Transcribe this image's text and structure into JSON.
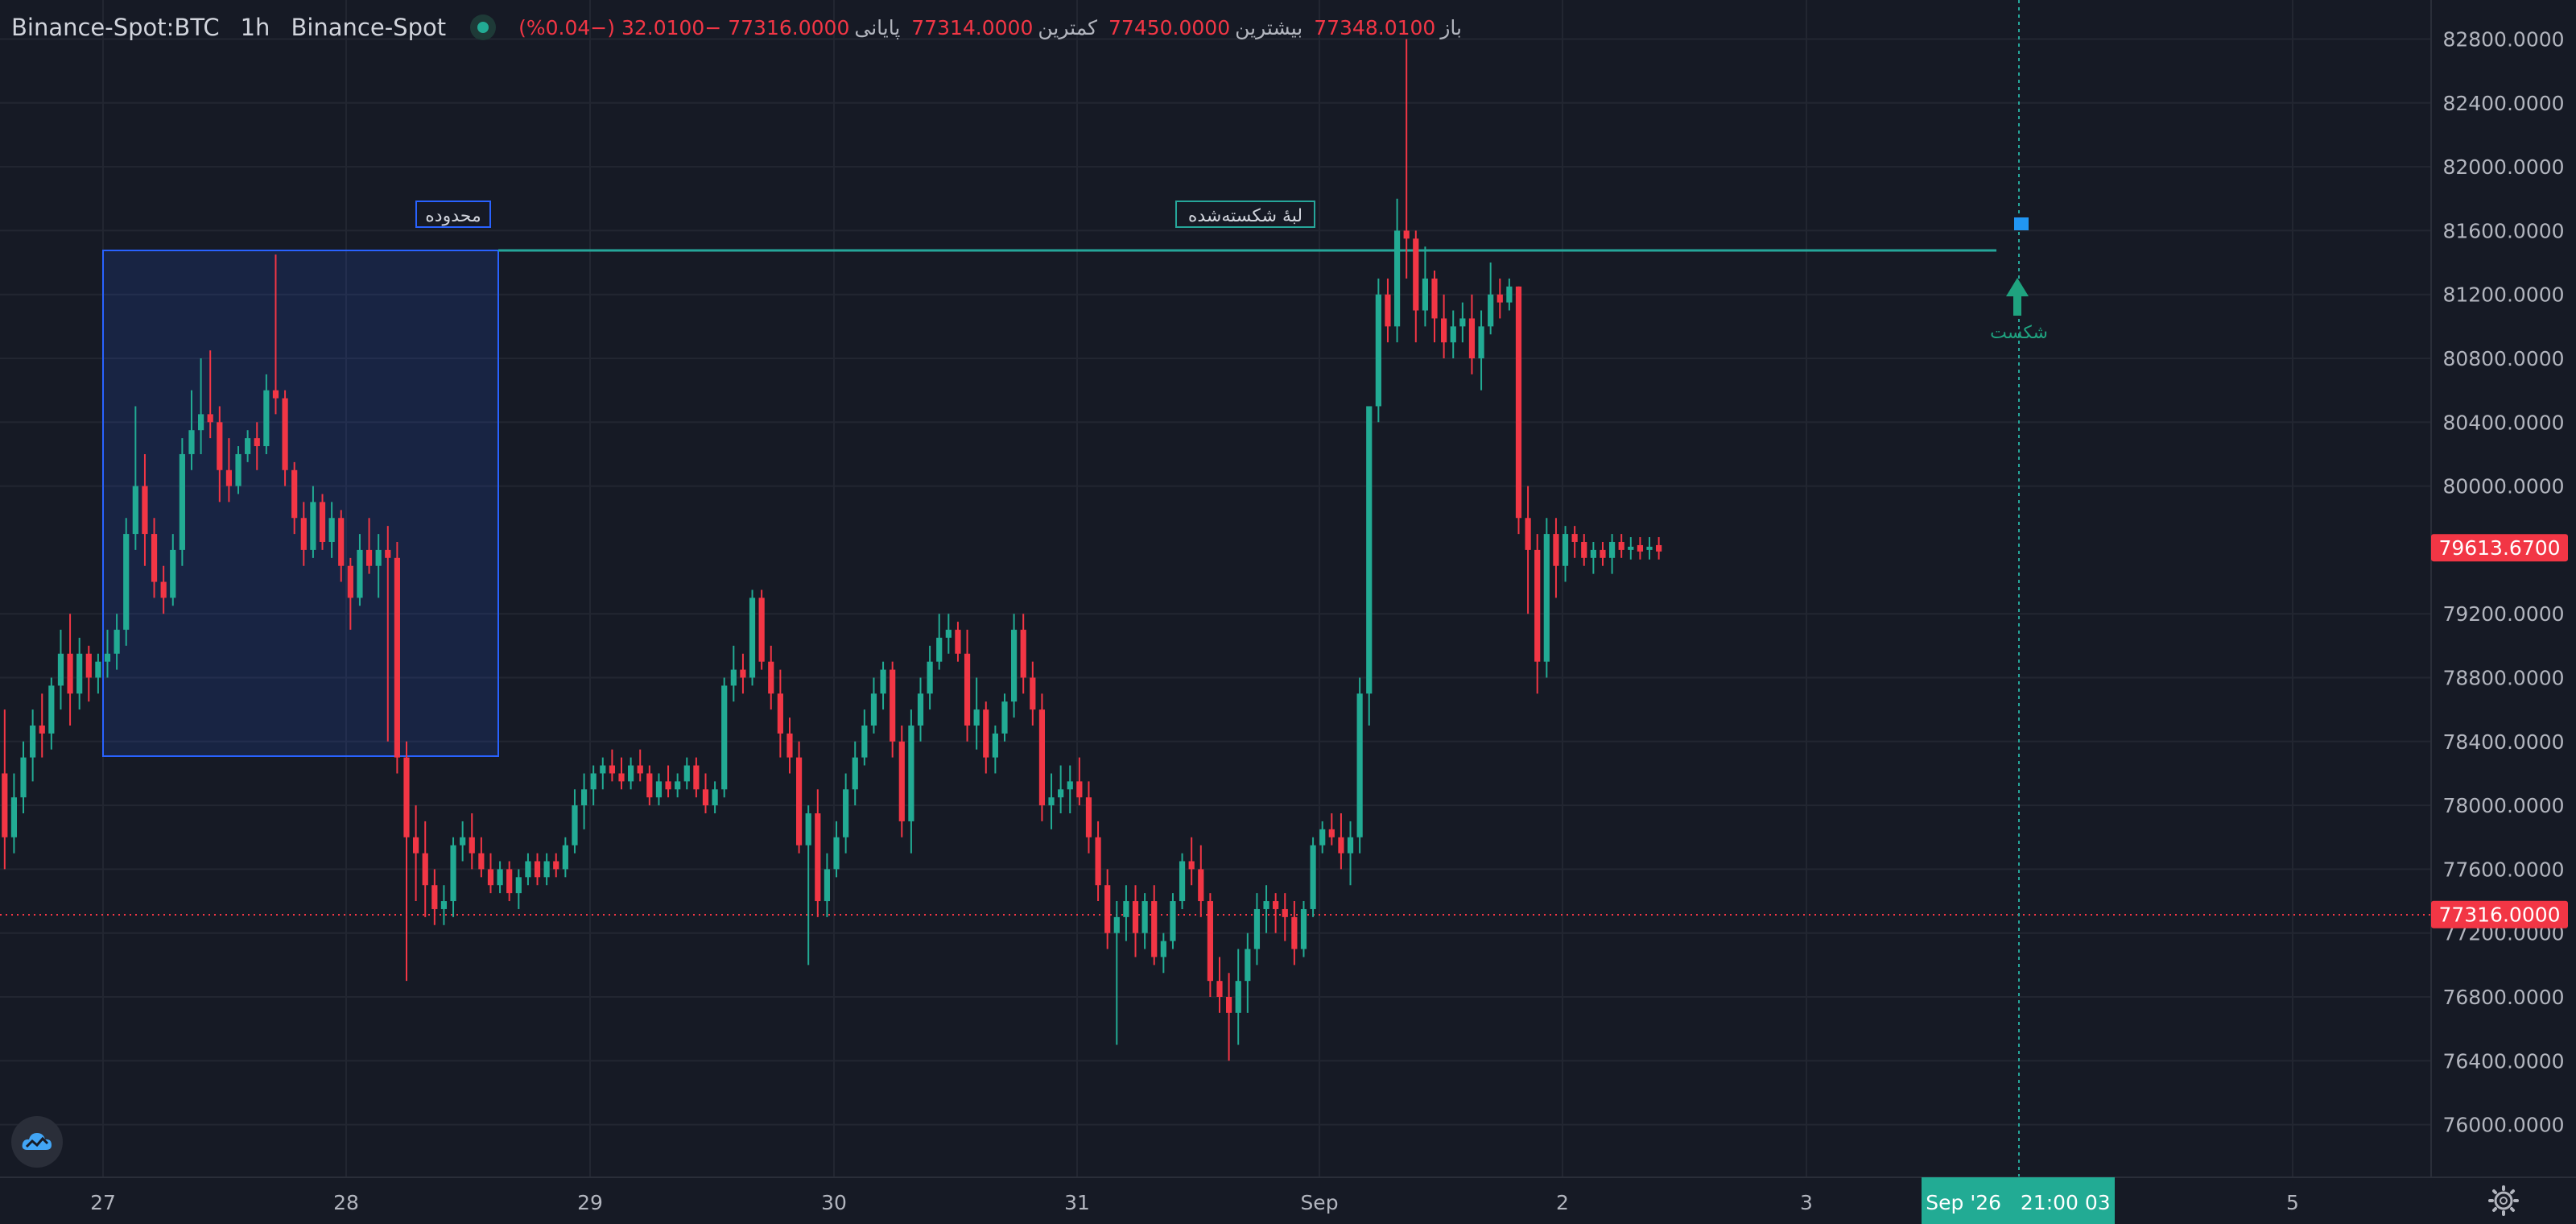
{
  "header": {
    "symbol": "Binance-Spot:BTC",
    "interval": "1h",
    "exchange": "Binance-Spot",
    "open_label": "باز",
    "open": "77348.0100",
    "high_label": "بیشترین",
    "high": "77450.0000",
    "low_label": "کمترین",
    "low": "77314.0000",
    "close_label": "پایانی",
    "close": "77316.0000",
    "change": "−32.0100 (−0.04%)"
  },
  "price_axis": {
    "ticks": [
      "82800.0000",
      "82400.0000",
      "82000.0000",
      "81600.0000",
      "81200.0000",
      "80800.0000",
      "80400.0000",
      "80000.0000",
      "79200.0000",
      "78800.0000",
      "78400.0000",
      "78000.0000",
      "77600.0000",
      "77200.0000",
      "76800.0000",
      "76400.0000",
      "76000.0000"
    ],
    "badges": [
      {
        "label": "79613.6700",
        "value": 79613.67,
        "color": "#f23645"
      },
      {
        "label": "77316.0000",
        "value": 77316,
        "color": "#f23645"
      }
    ]
  },
  "time_axis": {
    "ticks": [
      "27",
      "28",
      "29",
      "30",
      "31",
      "Sep",
      "2",
      "3",
      "5"
    ],
    "crosshair_label": "Sep '26   21:00 03"
  },
  "annotations": {
    "range_label": "محدوده",
    "broken_edge_label": "لبهٔ شکسته‌شده",
    "breakout_label": "شکست"
  },
  "colors": {
    "background": "#161a25",
    "up": "#22ab94",
    "down": "#f23645",
    "range_box": "#2962ff",
    "level_line": "#26a69a",
    "crosshair": "#26a69a"
  },
  "icons": {
    "logo": "tradingview-cloud-icon",
    "settings": "gear-icon"
  },
  "chart_data": {
    "type": "candlestick",
    "title": "",
    "series": [
      {
        "name": "",
        "values": [
          [
            78200,
            78600,
            77600,
            77800
          ],
          [
            77800,
            78200,
            77700,
            78050
          ],
          [
            78050,
            78400,
            77950,
            78300
          ],
          [
            78300,
            78600,
            78150,
            78500
          ],
          [
            78500,
            78700,
            78300,
            78450
          ],
          [
            78450,
            78800,
            78350,
            78750
          ],
          [
            78750,
            79100,
            78600,
            78950
          ],
          [
            78950,
            79200,
            78500,
            78700
          ],
          [
            78700,
            79050,
            78600,
            78950
          ],
          [
            78950,
            79000,
            78650,
            78800
          ],
          [
            78800,
            78950,
            78700,
            78900
          ],
          [
            78900,
            79100,
            78800,
            78950
          ],
          [
            78950,
            79200,
            78850,
            79100
          ],
          [
            79100,
            79800,
            79000,
            79700
          ],
          [
            79700,
            80500,
            79600,
            80000
          ],
          [
            80000,
            80200,
            79500,
            79700
          ],
          [
            79700,
            79800,
            79300,
            79400
          ],
          [
            79400,
            79500,
            79200,
            79300
          ],
          [
            79300,
            79700,
            79250,
            79600
          ],
          [
            79600,
            80300,
            79500,
            80200
          ],
          [
            80200,
            80600,
            80100,
            80350
          ],
          [
            80350,
            80800,
            80200,
            80450
          ],
          [
            80450,
            80850,
            80300,
            80400
          ],
          [
            80400,
            80500,
            79900,
            80100
          ],
          [
            80100,
            80300,
            79900,
            80000
          ],
          [
            80000,
            80250,
            79950,
            80200
          ],
          [
            80200,
            80350,
            80150,
            80300
          ],
          [
            80300,
            80400,
            80100,
            80250
          ],
          [
            80250,
            80700,
            80200,
            80600
          ],
          [
            80600,
            81450,
            80450,
            80550
          ],
          [
            80550,
            80600,
            80000,
            80100
          ],
          [
            80100,
            80150,
            79700,
            79800
          ],
          [
            79800,
            79900,
            79500,
            79600
          ],
          [
            79600,
            80000,
            79550,
            79900
          ],
          [
            79900,
            79950,
            79600,
            79650
          ],
          [
            79650,
            79900,
            79550,
            79800
          ],
          [
            79800,
            79850,
            79400,
            79500
          ],
          [
            79500,
            79550,
            79100,
            79300
          ],
          [
            79300,
            79700,
            79250,
            79600
          ],
          [
            79600,
            79800,
            79450,
            79500
          ],
          [
            79500,
            79700,
            79300,
            79600
          ],
          [
            79600,
            79750,
            78400,
            79550
          ],
          [
            79550,
            79650,
            78200,
            78300
          ],
          [
            78300,
            78400,
            76900,
            77800
          ],
          [
            77800,
            78000,
            77400,
            77700
          ],
          [
            77700,
            77900,
            77300,
            77500
          ],
          [
            77500,
            77600,
            77250,
            77350
          ],
          [
            77350,
            77500,
            77250,
            77400
          ],
          [
            77400,
            77800,
            77300,
            77750
          ],
          [
            77750,
            77900,
            77650,
            77800
          ],
          [
            77800,
            77950,
            77600,
            77700
          ],
          [
            77700,
            77800,
            77550,
            77600
          ],
          [
            77600,
            77700,
            77450,
            77500
          ],
          [
            77500,
            77650,
            77450,
            77600
          ],
          [
            77600,
            77650,
            77400,
            77450
          ],
          [
            77450,
            77600,
            77350,
            77550
          ],
          [
            77550,
            77700,
            77500,
            77650
          ],
          [
            77650,
            77700,
            77500,
            77550
          ],
          [
            77550,
            77700,
            77500,
            77650
          ],
          [
            77650,
            77700,
            77550,
            77600
          ],
          [
            77600,
            77800,
            77550,
            77750
          ],
          [
            77750,
            78100,
            77700,
            78000
          ],
          [
            78000,
            78200,
            77850,
            78100
          ],
          [
            78100,
            78250,
            78000,
            78200
          ],
          [
            78200,
            78300,
            78100,
            78250
          ],
          [
            78250,
            78350,
            78150,
            78200
          ],
          [
            78200,
            78300,
            78100,
            78150
          ],
          [
            78150,
            78300,
            78100,
            78250
          ],
          [
            78250,
            78350,
            78150,
            78200
          ],
          [
            78200,
            78250,
            78000,
            78050
          ],
          [
            78050,
            78200,
            78000,
            78150
          ],
          [
            78150,
            78250,
            78050,
            78100
          ],
          [
            78100,
            78200,
            78050,
            78150
          ],
          [
            78150,
            78300,
            78100,
            78250
          ],
          [
            78250,
            78300,
            78050,
            78100
          ],
          [
            78100,
            78200,
            77950,
            78000
          ],
          [
            78000,
            78150,
            77950,
            78100
          ],
          [
            78100,
            78800,
            78050,
            78750
          ],
          [
            78750,
            79000,
            78650,
            78850
          ],
          [
            78850,
            78950,
            78700,
            78800
          ],
          [
            78800,
            79350,
            78750,
            79300
          ],
          [
            79300,
            79350,
            78850,
            78900
          ],
          [
            78900,
            79000,
            78600,
            78700
          ],
          [
            78700,
            78850,
            78300,
            78450
          ],
          [
            78450,
            78550,
            78200,
            78300
          ],
          [
            78300,
            78400,
            77700,
            77750
          ],
          [
            77750,
            78000,
            77000,
            77950
          ],
          [
            77950,
            78100,
            77300,
            77400
          ],
          [
            77400,
            77700,
            77300,
            77600
          ],
          [
            77600,
            77900,
            77550,
            77800
          ],
          [
            77800,
            78200,
            77700,
            78100
          ],
          [
            78100,
            78400,
            78000,
            78300
          ],
          [
            78300,
            78600,
            78250,
            78500
          ],
          [
            78500,
            78800,
            78450,
            78700
          ],
          [
            78700,
            78900,
            78600,
            78850
          ],
          [
            78850,
            78900,
            78300,
            78400
          ],
          [
            78400,
            78500,
            77800,
            77900
          ],
          [
            77900,
            78600,
            77700,
            78500
          ],
          [
            78500,
            78800,
            78400,
            78700
          ],
          [
            78700,
            79000,
            78600,
            78900
          ],
          [
            78900,
            79200,
            78850,
            79050
          ],
          [
            79050,
            79200,
            78950,
            79100
          ],
          [
            79100,
            79150,
            78900,
            78950
          ],
          [
            78950,
            79100,
            78400,
            78500
          ],
          [
            78500,
            78800,
            78350,
            78600
          ],
          [
            78600,
            78650,
            78200,
            78300
          ],
          [
            78300,
            78500,
            78200,
            78450
          ],
          [
            78450,
            78700,
            78400,
            78650
          ],
          [
            78650,
            79200,
            78550,
            79100
          ],
          [
            79100,
            79200,
            78700,
            78800
          ],
          [
            78800,
            78900,
            78500,
            78600
          ],
          [
            78600,
            78700,
            77900,
            78000
          ],
          [
            78000,
            78200,
            77850,
            78050
          ],
          [
            78050,
            78250,
            77950,
            78100
          ],
          [
            78100,
            78250,
            77950,
            78150
          ],
          [
            78150,
            78300,
            78000,
            78050
          ],
          [
            78050,
            78150,
            77700,
            77800
          ],
          [
            77800,
            77900,
            77400,
            77500
          ],
          [
            77500,
            77600,
            77100,
            77200
          ],
          [
            77200,
            77400,
            76500,
            77300
          ],
          [
            77300,
            77500,
            77150,
            77400
          ],
          [
            77400,
            77500,
            77050,
            77200
          ],
          [
            77200,
            77450,
            77100,
            77400
          ],
          [
            77400,
            77500,
            77000,
            77050
          ],
          [
            77050,
            77200,
            76950,
            77150
          ],
          [
            77150,
            77450,
            77100,
            77400
          ],
          [
            77400,
            77700,
            77350,
            77650
          ],
          [
            77650,
            77800,
            77500,
            77600
          ],
          [
            77600,
            77750,
            77300,
            77400
          ],
          [
            77400,
            77450,
            76800,
            76900
          ],
          [
            76900,
            77050,
            76700,
            76800
          ],
          [
            76800,
            76950,
            76400,
            76700
          ],
          [
            76700,
            77100,
            76500,
            76900
          ],
          [
            76900,
            77200,
            76700,
            77100
          ],
          [
            77100,
            77450,
            77000,
            77350
          ],
          [
            77350,
            77500,
            77200,
            77400
          ],
          [
            77400,
            77450,
            77200,
            77350
          ],
          [
            77350,
            77450,
            77150,
            77300
          ],
          [
            77300,
            77400,
            77000,
            77100
          ],
          [
            77100,
            77400,
            77050,
            77350
          ],
          [
            77350,
            77800,
            77300,
            77750
          ],
          [
            77750,
            77900,
            77700,
            77850
          ],
          [
            77850,
            77950,
            77750,
            77800
          ],
          [
            77800,
            77950,
            77600,
            77700
          ],
          [
            77700,
            77900,
            77500,
            77800
          ],
          [
            77800,
            78800,
            77700,
            78700
          ],
          [
            78700,
            79900,
            78500,
            80500
          ],
          [
            80500,
            81300,
            80400,
            81200
          ],
          [
            81200,
            81300,
            80900,
            81000
          ],
          [
            81000,
            81800,
            80900,
            81600
          ],
          [
            81600,
            82800,
            81300,
            81550
          ],
          [
            81550,
            81600,
            80900,
            81100
          ],
          [
            81100,
            81500,
            81000,
            81300
          ],
          [
            81300,
            81350,
            80900,
            81050
          ],
          [
            81050,
            81200,
            80800,
            80900
          ],
          [
            80900,
            81100,
            80800,
            81000
          ],
          [
            81000,
            81150,
            80900,
            81050
          ],
          [
            81050,
            81200,
            80700,
            80800
          ],
          [
            80800,
            81100,
            80600,
            81000
          ],
          [
            81000,
            81400,
            80950,
            81200
          ],
          [
            81200,
            81300,
            81050,
            81150
          ],
          [
            81150,
            81300,
            81100,
            81250
          ],
          [
            81250,
            81250,
            79700,
            79800
          ],
          [
            79800,
            80000,
            79200,
            79600
          ],
          [
            79600,
            79700,
            78700,
            78900
          ],
          [
            78900,
            79800,
            78800,
            79700
          ],
          [
            79700,
            79800,
            79300,
            79500
          ],
          [
            79500,
            79750,
            79400,
            79700
          ],
          [
            79700,
            79750,
            79550,
            79650
          ],
          [
            79650,
            79700,
            79500,
            79550
          ],
          [
            79550,
            79650,
            79450,
            79600
          ],
          [
            79600,
            79650,
            79500,
            79550
          ],
          [
            79550,
            79700,
            79450,
            79650
          ],
          [
            79650,
            79700,
            79550,
            79600
          ]
        ]
      }
    ],
    "xlabel": "",
    "ylabel": "",
    "ylim": [
      75700,
      83000
    ],
    "grid": true
  }
}
